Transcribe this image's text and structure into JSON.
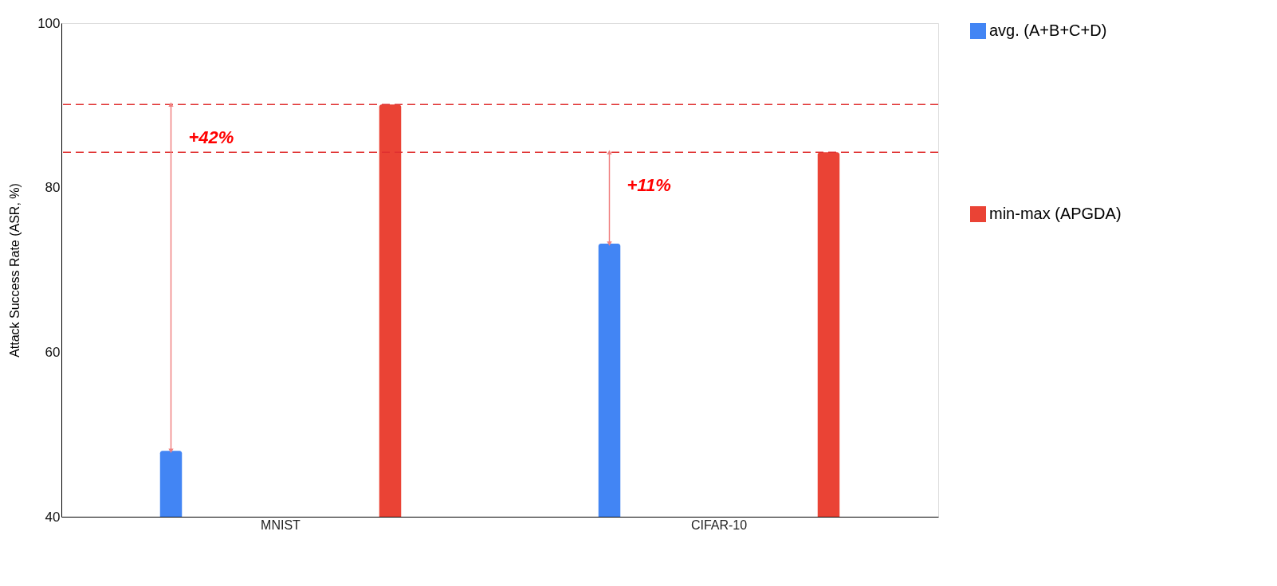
{
  "chart_data": {
    "type": "bar",
    "ylabel": "Attack Success Rate (ASR, %)",
    "categories": [
      "MNIST",
      "CIFAR-10"
    ],
    "series": [
      {
        "name": "avg. (A+B+C+D)",
        "color": "#4285f4",
        "values": [
          48.0,
          73.2
        ]
      },
      {
        "name": "min-max (APGDA)",
        "color": "#ea4335",
        "values": [
          90.1,
          84.3
        ]
      }
    ],
    "ylim": [
      40,
      100
    ],
    "yticks": [
      40,
      60,
      80,
      100
    ],
    "grid": false,
    "legend": "right",
    "ref_lines": [
      {
        "axis": "y",
        "value": 90.1,
        "color": "#e03030",
        "line_style": "dashed"
      },
      {
        "axis": "y",
        "value": 84.3,
        "color": "#e03030",
        "line_style": "dashed"
      }
    ],
    "annotations": [
      "+42%",
      "+11%"
    ]
  }
}
